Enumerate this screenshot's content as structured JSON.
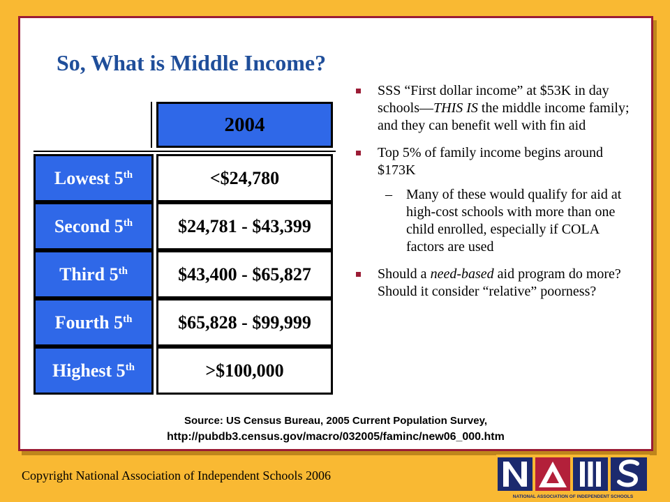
{
  "slide": {
    "title": "So, What is Middle Income?",
    "table": {
      "header": "2004",
      "rows": [
        {
          "label": "Lowest 5",
          "sup": "th",
          "value": "<$24,780"
        },
        {
          "label": "Second 5",
          "sup": "th",
          "value": "$24,781 - $43,399"
        },
        {
          "label": "Third 5",
          "sup": "th",
          "value": "$43,400 - $65,827"
        },
        {
          "label": "Fourth 5",
          "sup": "th",
          "value": "$65,828 - $99,999"
        },
        {
          "label": "Highest 5",
          "sup": "th",
          "value": ">$100,000"
        }
      ]
    },
    "bullets": {
      "b1_a": "SSS “First dollar income” at $53K in day schools—",
      "b1_em": "THIS IS",
      "b1_b": " the middle income family; and they can benefit well with fin aid",
      "b2": "Top 5% of family income begins around $173K",
      "b2_dash": "–",
      "b2_sub": "Many of these would qualify for aid at high-cost schools with more than one child enrolled, especially if COLA factors are used",
      "b3_a": "Should a ",
      "b3_em": "need-based",
      "b3_b": " aid program do more?  Should it consider “relative” poorness?"
    },
    "source_line1": "Source: US Census Bureau, 2005 Current Population Survey,",
    "source_line2": "http://pubdb3.census.gov/macro/032005/faminc/new06_000.htm",
    "copyright": "Copyright National Association of Independent Schools 2006",
    "logo": {
      "letters": [
        "N",
        "A",
        "I",
        "S"
      ],
      "caption": "NATIONAL ASSOCIATION OF INDEPENDENT SCHOOLS"
    },
    "colors": {
      "background": "#f9b933",
      "border": "#9b1c35",
      "title": "#1f4e9a",
      "table_blue": "#2f68e8",
      "logo_navy": "#1c2a6e"
    }
  }
}
